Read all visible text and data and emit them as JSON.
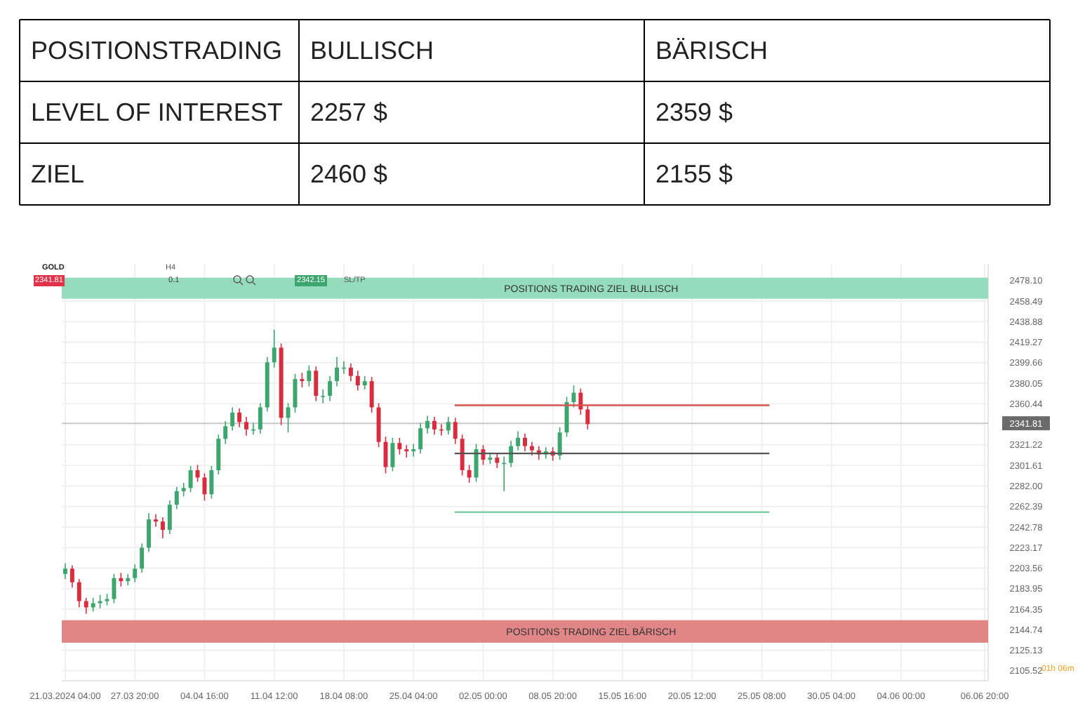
{
  "chart_data": [
    {
      "type": "other",
      "annotations": [
        "POSITIONSTRADING",
        "BULLISCH",
        "BÄRISCH",
        "LEVEL OF INTEREST",
        "2257 $",
        "2359 $",
        "ZIEL",
        "2460 $",
        "2155 $"
      ]
    },
    {
      "type": "candlestick",
      "ylim": [
        2096,
        2494
      ],
      "categories": [
        "21.03.2024 04:00",
        null,
        null,
        null,
        null,
        null,
        null,
        null,
        null,
        null,
        "27.03 20:00",
        null,
        null,
        null,
        null,
        null,
        null,
        null,
        null,
        null,
        "04.04 16:00",
        null,
        null,
        null,
        null,
        null,
        null,
        null,
        null,
        null,
        "11.04 12:00",
        null,
        null,
        null,
        null,
        null,
        null,
        null,
        null,
        null,
        "18.04 08:00",
        null,
        null,
        null,
        null,
        null,
        null,
        null,
        null,
        null,
        "25.04 04:00",
        null,
        null,
        null,
        null,
        null,
        null,
        null,
        null,
        null,
        "02.05 00:00",
        null,
        null,
        null,
        null,
        null,
        null,
        null,
        null,
        null,
        "08.05 20:00",
        null,
        null,
        null,
        null,
        null,
        null,
        null,
        null,
        null,
        "15.05 16:00",
        null,
        null,
        null,
        null,
        null,
        null,
        null,
        null,
        null,
        "20.05 12:00",
        null,
        null,
        null,
        null,
        null,
        null,
        null,
        null,
        null,
        "25.05 08:00",
        null,
        null,
        null,
        null,
        null,
        null,
        null,
        null,
        null,
        "30.05 04:00",
        null,
        null,
        null,
        null,
        null,
        null,
        null,
        null,
        null,
        "04.06 00:00",
        null,
        null,
        null,
        null,
        null,
        null,
        null,
        null,
        null,
        null,
        null,
        "06.06 20:00"
      ],
      "yticks": [
        {
          "value": 2478.1,
          "label": "2478.10"
        },
        2458.49,
        2438.88,
        2419.27,
        2399.66,
        2380.05,
        2360.44,
        2321.22,
        2301.61,
        {
          "value": 2282,
          "label": "2282.00"
        },
        2262.39,
        2242.78,
        2223.17,
        2203.56,
        2183.95,
        2164.35,
        2144.74,
        2125.13,
        2105.52
      ],
      "grid": true,
      "series": [
        {
          "type": "candlestick",
          "ohlc": [
            [
              2198,
              2208,
              2193,
              2203
            ],
            [
              2203,
              2206,
              2185,
              2190
            ],
            [
              2190,
              2193,
              2166,
              2172
            ],
            [
              2172,
              2175,
              2160,
              2166
            ],
            [
              2166,
              2175,
              2162,
              2170
            ],
            [
              2170,
              2178,
              2165,
              2172
            ],
            [
              2172,
              2179,
              2168,
              2174
            ],
            [
              2174,
              2198,
              2170,
              2194
            ],
            [
              2194,
              2199,
              2186,
              2191
            ],
            [
              2191,
              2198,
              2187,
              2194
            ],
            [
              2194,
              2207,
              2190,
              2203
            ],
            [
              2203,
              2227,
              2199,
              2223
            ],
            [
              2223,
              2256,
              2219,
              2250
            ],
            [
              2250,
              2255,
              2243,
              2248
            ],
            [
              2248,
              2252,
              2232,
              2240
            ],
            [
              2240,
              2268,
              2236,
              2264
            ],
            [
              2264,
              2281,
              2260,
              2277
            ],
            [
              2277,
              2285,
              2272,
              2280
            ],
            [
              2280,
              2301,
              2276,
              2297
            ],
            [
              2297,
              2302,
              2286,
              2290
            ],
            [
              2290,
              2294,
              2268,
              2274
            ],
            [
              2274,
              2301,
              2270,
              2297
            ],
            [
              2297,
              2331,
              2293,
              2327
            ],
            [
              2327,
              2344,
              2322,
              2339
            ],
            [
              2339,
              2357,
              2335,
              2352
            ],
            [
              2352,
              2356,
              2338,
              2343
            ],
            [
              2343,
              2348,
              2330,
              2336
            ],
            [
              2336,
              2342,
              2331,
              2336
            ],
            [
              2336,
              2361,
              2332,
              2357
            ],
            [
              2357,
              2405,
              2353,
              2400
            ],
            [
              2400,
              2431,
              2395,
              2414
            ],
            [
              2414,
              2418,
              2340,
              2347
            ],
            [
              2347,
              2361,
              2333,
              2357
            ],
            [
              2357,
              2389,
              2352,
              2384
            ],
            [
              2384,
              2390,
              2376,
              2382
            ],
            [
              2382,
              2397,
              2377,
              2392
            ],
            [
              2392,
              2396,
              2363,
              2368
            ],
            [
              2368,
              2374,
              2361,
              2368
            ],
            [
              2368,
              2387,
              2363,
              2382
            ],
            [
              2382,
              2405,
              2377,
              2395
            ],
            [
              2395,
              2401,
              2389,
              2395
            ],
            [
              2395,
              2399,
              2382,
              2387
            ],
            [
              2387,
              2392,
              2373,
              2378
            ],
            [
              2378,
              2387,
              2374,
              2382
            ],
            [
              2382,
              2386,
              2352,
              2357
            ],
            [
              2357,
              2361,
              2319,
              2324
            ],
            [
              2324,
              2329,
              2294,
              2300
            ],
            [
              2300,
              2328,
              2296,
              2323
            ],
            [
              2323,
              2328,
              2312,
              2317
            ],
            [
              2317,
              2321,
              2309,
              2315
            ],
            [
              2315,
              2322,
              2310,
              2317
            ],
            [
              2317,
              2342,
              2313,
              2337
            ],
            [
              2337,
              2349,
              2332,
              2344
            ],
            [
              2344,
              2348,
              2331,
              2336
            ],
            [
              2336,
              2341,
              2330,
              2335
            ],
            [
              2335,
              2348,
              2331,
              2343
            ],
            [
              2343,
              2347,
              2322,
              2327
            ],
            [
              2327,
              2331,
              2292,
              2297
            ],
            [
              2297,
              2302,
              2285,
              2290
            ],
            [
              2290,
              2322,
              2286,
              2317
            ],
            [
              2317,
              2321,
              2302,
              2307
            ],
            [
              2307,
              2314,
              2303,
              2309
            ],
            [
              2309,
              2313,
              2299,
              2304
            ],
            [
              2304,
              2310,
              2277,
              2304
            ],
            [
              2304,
              2325,
              2300,
              2320
            ],
            [
              2320,
              2334,
              2316,
              2328
            ],
            [
              2328,
              2332,
              2315,
              2320
            ],
            [
              2320,
              2324,
              2311,
              2316
            ],
            [
              2316,
              2320,
              2307,
              2312
            ],
            [
              2312,
              2319,
              2308,
              2315
            ],
            [
              2315,
              2319,
              2306,
              2311
            ],
            [
              2311,
              2338,
              2307,
              2333
            ],
            [
              2333,
              2367,
              2329,
              2362
            ],
            [
              2362,
              2378,
              2357,
              2371
            ],
            [
              2371,
              2375,
              2350,
              2355
            ],
            [
              2355,
              2359,
              2336,
              2341
            ],
            null,
            null,
            null,
            null,
            null,
            null,
            null,
            null,
            null,
            null,
            null,
            null,
            null,
            null,
            null,
            null,
            null,
            null,
            null,
            null,
            null,
            null,
            null,
            null,
            null,
            null,
            null,
            null,
            null,
            null,
            null,
            null,
            null,
            null,
            null,
            null,
            null,
            null,
            null,
            null,
            null,
            null,
            null,
            null,
            null,
            null,
            null,
            null,
            null,
            null,
            null,
            null,
            null,
            null,
            null,
            null,
            null
          ],
          "colors": [
            "#3da56e",
            "#d62d3f",
            "#d62d3f",
            "#d62d3f",
            "#3da56e",
            "#3da56e",
            "#3da56e",
            "#3da56e",
            "#d62d3f",
            "#3da56e",
            "#3da56e",
            "#3da56e",
            "#3da56e",
            "#d62d3f",
            "#d62d3f",
            "#3da56e",
            "#3da56e",
            "#3da56e",
            "#3da56e",
            "#d62d3f",
            "#d62d3f",
            "#3da56e",
            "#3da56e",
            "#3da56e",
            "#3da56e",
            "#d62d3f",
            "#d62d3f",
            "#3da56e",
            "#3da56e",
            "#3da56e",
            "#3da56e",
            "#d62d3f",
            "#3da56e",
            "#3da56e",
            "#d62d3f",
            "#3da56e",
            "#d62d3f",
            "#3da56e",
            "#3da56e",
            "#3da56e",
            "#3da56e",
            "#d62d3f",
            "#d62d3f",
            "#3da56e",
            "#d62d3f",
            "#d62d3f",
            "#d62d3f",
            "#3da56e",
            "#d62d3f",
            "#d62d3f",
            "#3da56e",
            "#3da56e",
            "#3da56e",
            "#d62d3f",
            "#d62d3f",
            "#3da56e",
            "#d62d3f",
            "#d62d3f",
            "#d62d3f",
            "#3da56e",
            "#d62d3f",
            "#3da56e",
            "#d62d3f",
            "#3da56e",
            "#3da56e",
            "#3da56e",
            "#d62d3f",
            "#d62d3f",
            "#d62d3f",
            "#3da56e",
            "#d62d3f",
            "#3da56e",
            "#3da56e",
            "#3da56e",
            "#d62d3f",
            "#d62d3f",
            null,
            null,
            null,
            null,
            null,
            null,
            null,
            null,
            null,
            null,
            null,
            null,
            null,
            null,
            null,
            null,
            null,
            null,
            null,
            null,
            null,
            null,
            null,
            null,
            null,
            null,
            null,
            null,
            null,
            null,
            null,
            null,
            null,
            null,
            null,
            null,
            null,
            null,
            null,
            null,
            null,
            null,
            null,
            null,
            null,
            null,
            null,
            null,
            null,
            null,
            null,
            null,
            null,
            null,
            null,
            null,
            null
          ]
        },
        {
          "type": "line",
          "values": [
            null,
            null,
            null,
            null,
            null,
            null,
            null,
            null,
            null,
            null,
            null,
            null,
            null,
            null,
            null,
            null,
            null,
            null,
            null,
            null,
            null,
            null,
            null,
            null,
            null,
            null,
            null,
            null,
            null,
            null,
            null,
            null,
            null,
            null,
            null,
            null,
            null,
            null,
            null,
            null,
            null,
            null,
            null,
            null,
            null,
            null,
            null,
            null,
            null,
            null,
            null,
            null,
            null,
            null,
            null,
            null,
            2359,
            2359,
            2359,
            2359,
            2359,
            2359,
            2359,
            2359,
            2359,
            2359,
            2359,
            2359,
            2359,
            2359,
            2359,
            2359,
            2359,
            2359,
            2359,
            2359,
            2359,
            2359,
            2359,
            2359,
            2359,
            2359,
            2359,
            2359,
            2359,
            2359,
            2359,
            2359,
            2359,
            2359,
            2359,
            2359,
            2359,
            2359,
            2359,
            2359,
            2359,
            2359,
            2359,
            2359,
            2359,
            2359,
            null,
            null,
            null,
            null,
            null,
            null,
            null,
            null,
            null,
            null,
            null,
            null,
            null,
            null,
            null,
            null,
            null,
            null,
            null,
            null,
            null,
            null,
            null,
            null,
            null,
            null,
            null,
            null,
            null,
            null,
            null
          ],
          "color": "#d9534f"
        },
        {
          "type": "line",
          "values": [
            null,
            null,
            null,
            null,
            null,
            null,
            null,
            null,
            null,
            null,
            null,
            null,
            null,
            null,
            null,
            null,
            null,
            null,
            null,
            null,
            null,
            null,
            null,
            null,
            null,
            null,
            null,
            null,
            null,
            null,
            null,
            null,
            null,
            null,
            null,
            null,
            null,
            null,
            null,
            null,
            null,
            null,
            null,
            null,
            null,
            null,
            null,
            null,
            null,
            null,
            null,
            null,
            null,
            null,
            null,
            null,
            2313,
            2313,
            2313,
            2313,
            2313,
            2313,
            2313,
            2313,
            2313,
            2313,
            2313,
            2313,
            2313,
            2313,
            2313,
            2313,
            2313,
            2313,
            2313,
            2313,
            2313,
            2313,
            2313,
            2313,
            2313,
            2313,
            2313,
            2313,
            2313,
            2313,
            2313,
            2313,
            2313,
            2313,
            2313,
            2313,
            2313,
            2313,
            2313,
            2313,
            2313,
            2313,
            2313,
            2313,
            2313,
            2313,
            null,
            null,
            null,
            null,
            null,
            null,
            null,
            null,
            null,
            null,
            null,
            null,
            null,
            null,
            null,
            null,
            null,
            null,
            null,
            null,
            null,
            null,
            null,
            null,
            null,
            null,
            null,
            null,
            null,
            null,
            null
          ],
          "color": "#555555"
        },
        {
          "type": "line",
          "values": [
            null,
            null,
            null,
            null,
            null,
            null,
            null,
            null,
            null,
            null,
            null,
            null,
            null,
            null,
            null,
            null,
            null,
            null,
            null,
            null,
            null,
            null,
            null,
            null,
            null,
            null,
            null,
            null,
            null,
            null,
            null,
            null,
            null,
            null,
            null,
            null,
            null,
            null,
            null,
            null,
            null,
            null,
            null,
            null,
            null,
            null,
            null,
            null,
            null,
            null,
            null,
            null,
            null,
            null,
            null,
            null,
            2257,
            2257,
            2257,
            2257,
            2257,
            2257,
            2257,
            2257,
            2257,
            2257,
            2257,
            2257,
            2257,
            2257,
            2257,
            2257,
            2257,
            2257,
            2257,
            2257,
            2257,
            2257,
            2257,
            2257,
            2257,
            2257,
            2257,
            2257,
            2257,
            2257,
            2257,
            2257,
            2257,
            2257,
            2257,
            2257,
            2257,
            2257,
            2257,
            2257,
            2257,
            2257,
            2257,
            2257,
            2257,
            2257,
            null,
            null,
            null,
            null,
            null,
            null,
            null,
            null,
            null,
            null,
            null,
            null,
            null,
            null,
            null,
            null,
            null,
            null,
            null,
            null,
            null,
            null,
            null,
            null,
            null,
            null,
            null,
            null,
            null,
            null,
            null
          ],
          "color": "#7fcfa7"
        }
      ],
      "ref_lines": [
        {
          "axis": "y",
          "value": 2341.81,
          "label": "2341.81",
          "color": "#c8c8c8"
        }
      ],
      "bands": [
        {
          "axis": "y",
          "from": 2460.7,
          "to": 2480.8,
          "label": "POSITIONS TRADING ZIEL BULLISCH",
          "color": "#8fdab8"
        },
        {
          "axis": "y",
          "from": 2132.3,
          "to": 2153.8,
          "label": "POSITIONS TRADING ZIEL BÄRISCH",
          "color": "#df7f7f"
        }
      ],
      "annotations": [
        "GOLD",
        "H4",
        "2341.81",
        "0.1",
        "2342.15",
        "SL/TP",
        "01h 06m"
      ]
    }
  ]
}
